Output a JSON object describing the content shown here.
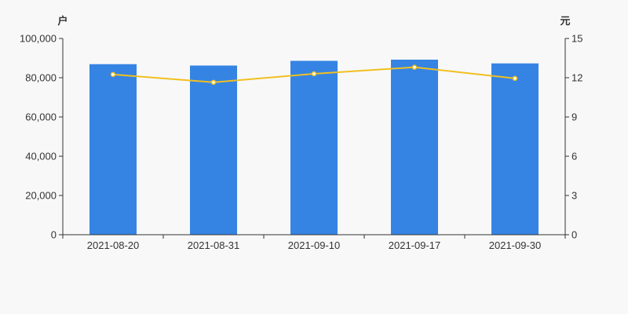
{
  "chart_data": {
    "type": "bar+line",
    "categories": [
      "2021-08-20",
      "2021-08-31",
      "2021-09-10",
      "2021-09-17",
      "2021-09-30"
    ],
    "series": [
      {
        "values": [
          86900,
          86200,
          88600,
          89200,
          87300
        ],
        "axis": "left",
        "type": "bar",
        "color": "#3584e4"
      },
      {
        "values": [
          12.25,
          11.65,
          12.3,
          12.8,
          11.95
        ],
        "axis": "right",
        "type": "line",
        "color": "#f0c020"
      }
    ],
    "left_axis": {
      "unit": "户",
      "ylim": [
        0,
        100000
      ],
      "ticks": [
        "0",
        "20,000",
        "40,000",
        "60,000",
        "80,000",
        "100,000"
      ]
    },
    "right_axis": {
      "unit": "元",
      "ylim": [
        0,
        15
      ],
      "ticks": [
        "0",
        "3",
        "6",
        "9",
        "12",
        "15"
      ]
    },
    "grid": false,
    "legend": "none"
  }
}
